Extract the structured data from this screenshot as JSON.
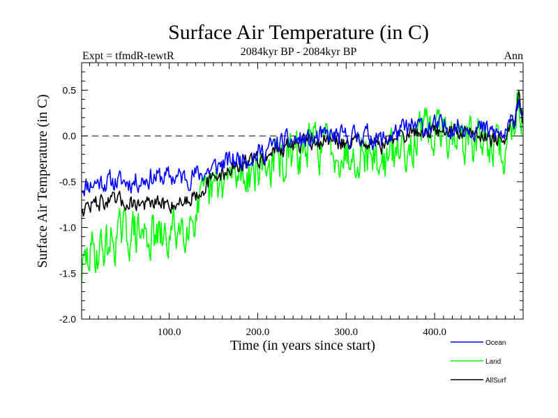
{
  "chart_data": {
    "type": "line",
    "title": "Surface Air Temperature (in C)",
    "subtitle_left": "Expt = tfmdR-tewtR",
    "subtitle_center": "2084kyr BP - 2084kyr BP",
    "subtitle_right": "Ann",
    "xlabel": "Time (in years since start)",
    "ylabel": "Surface Air Temperature (in C)",
    "xlim": [
      1,
      500
    ],
    "ylim": [
      -2.0,
      0.8
    ],
    "x_ticks": [
      100,
      200,
      300,
      400
    ],
    "x_tick_labels": [
      "100.0",
      "200.0",
      "300.0",
      "400.0"
    ],
    "y_ticks": [
      -2.0,
      -1.5,
      -1.0,
      -0.5,
      0.0,
      0.5
    ],
    "y_tick_labels": [
      "-2.0",
      "-1.5",
      "-1.0",
      "-0.5",
      "0.0",
      "0.5"
    ],
    "reference_line": 0.0,
    "legend_position": "bottom-right",
    "series": [
      {
        "name": "Ocean",
        "color": "#0000ff",
        "anchors_x": [
          1,
          20,
          40,
          60,
          80,
          100,
          120,
          140,
          160,
          180,
          200,
          220,
          240,
          260,
          280,
          300,
          320,
          340,
          360,
          380,
          400,
          420,
          440,
          460,
          480,
          490,
          495,
          500
        ],
        "anchors_y": [
          -0.55,
          -0.5,
          -0.5,
          -0.5,
          -0.45,
          -0.45,
          -0.45,
          -0.4,
          -0.3,
          -0.25,
          -0.2,
          -0.1,
          -0.05,
          -0.05,
          0.0,
          -0.02,
          0.02,
          -0.05,
          0.05,
          0.1,
          0.1,
          0.1,
          0.1,
          0.05,
          0.0,
          0.2,
          0.45,
          0.2
        ],
        "noise": 0.1,
        "seed": 11
      },
      {
        "name": "Land",
        "color": "#00ff00",
        "anchors_x": [
          1,
          10,
          20,
          30,
          40,
          60,
          80,
          95,
          110,
          130,
          150,
          170,
          200,
          220,
          240,
          260,
          280,
          300,
          320,
          340,
          360,
          380,
          400,
          420,
          440,
          460,
          480,
          490,
          495,
          500
        ],
        "anchors_y": [
          -1.5,
          -1.3,
          -1.25,
          -1.2,
          -1.1,
          -1.05,
          -1.1,
          -1.15,
          -1.0,
          -0.85,
          -0.6,
          -0.45,
          -0.35,
          -0.3,
          -0.25,
          -0.1,
          -0.1,
          -0.2,
          -0.15,
          -0.3,
          -0.15,
          0.0,
          0.05,
          0.0,
          -0.05,
          -0.05,
          -0.2,
          0.2,
          0.5,
          0.2
        ],
        "noise": 0.22,
        "seed": 29
      },
      {
        "name": "AllSurf",
        "color": "#000000",
        "anchors_x": [
          1,
          20,
          40,
          60,
          80,
          100,
          120,
          140,
          160,
          180,
          200,
          220,
          240,
          260,
          280,
          300,
          320,
          340,
          360,
          380,
          400,
          420,
          440,
          460,
          480,
          490,
          495,
          500
        ],
        "anchors_y": [
          -0.8,
          -0.72,
          -0.72,
          -0.73,
          -0.75,
          -0.75,
          -0.7,
          -0.55,
          -0.4,
          -0.32,
          -0.27,
          -0.15,
          -0.1,
          -0.08,
          -0.05,
          -0.07,
          -0.03,
          -0.1,
          0.0,
          0.05,
          0.05,
          0.05,
          0.05,
          0.0,
          -0.05,
          0.15,
          0.4,
          0.15
        ],
        "noise": 0.08,
        "seed": 47
      }
    ]
  }
}
